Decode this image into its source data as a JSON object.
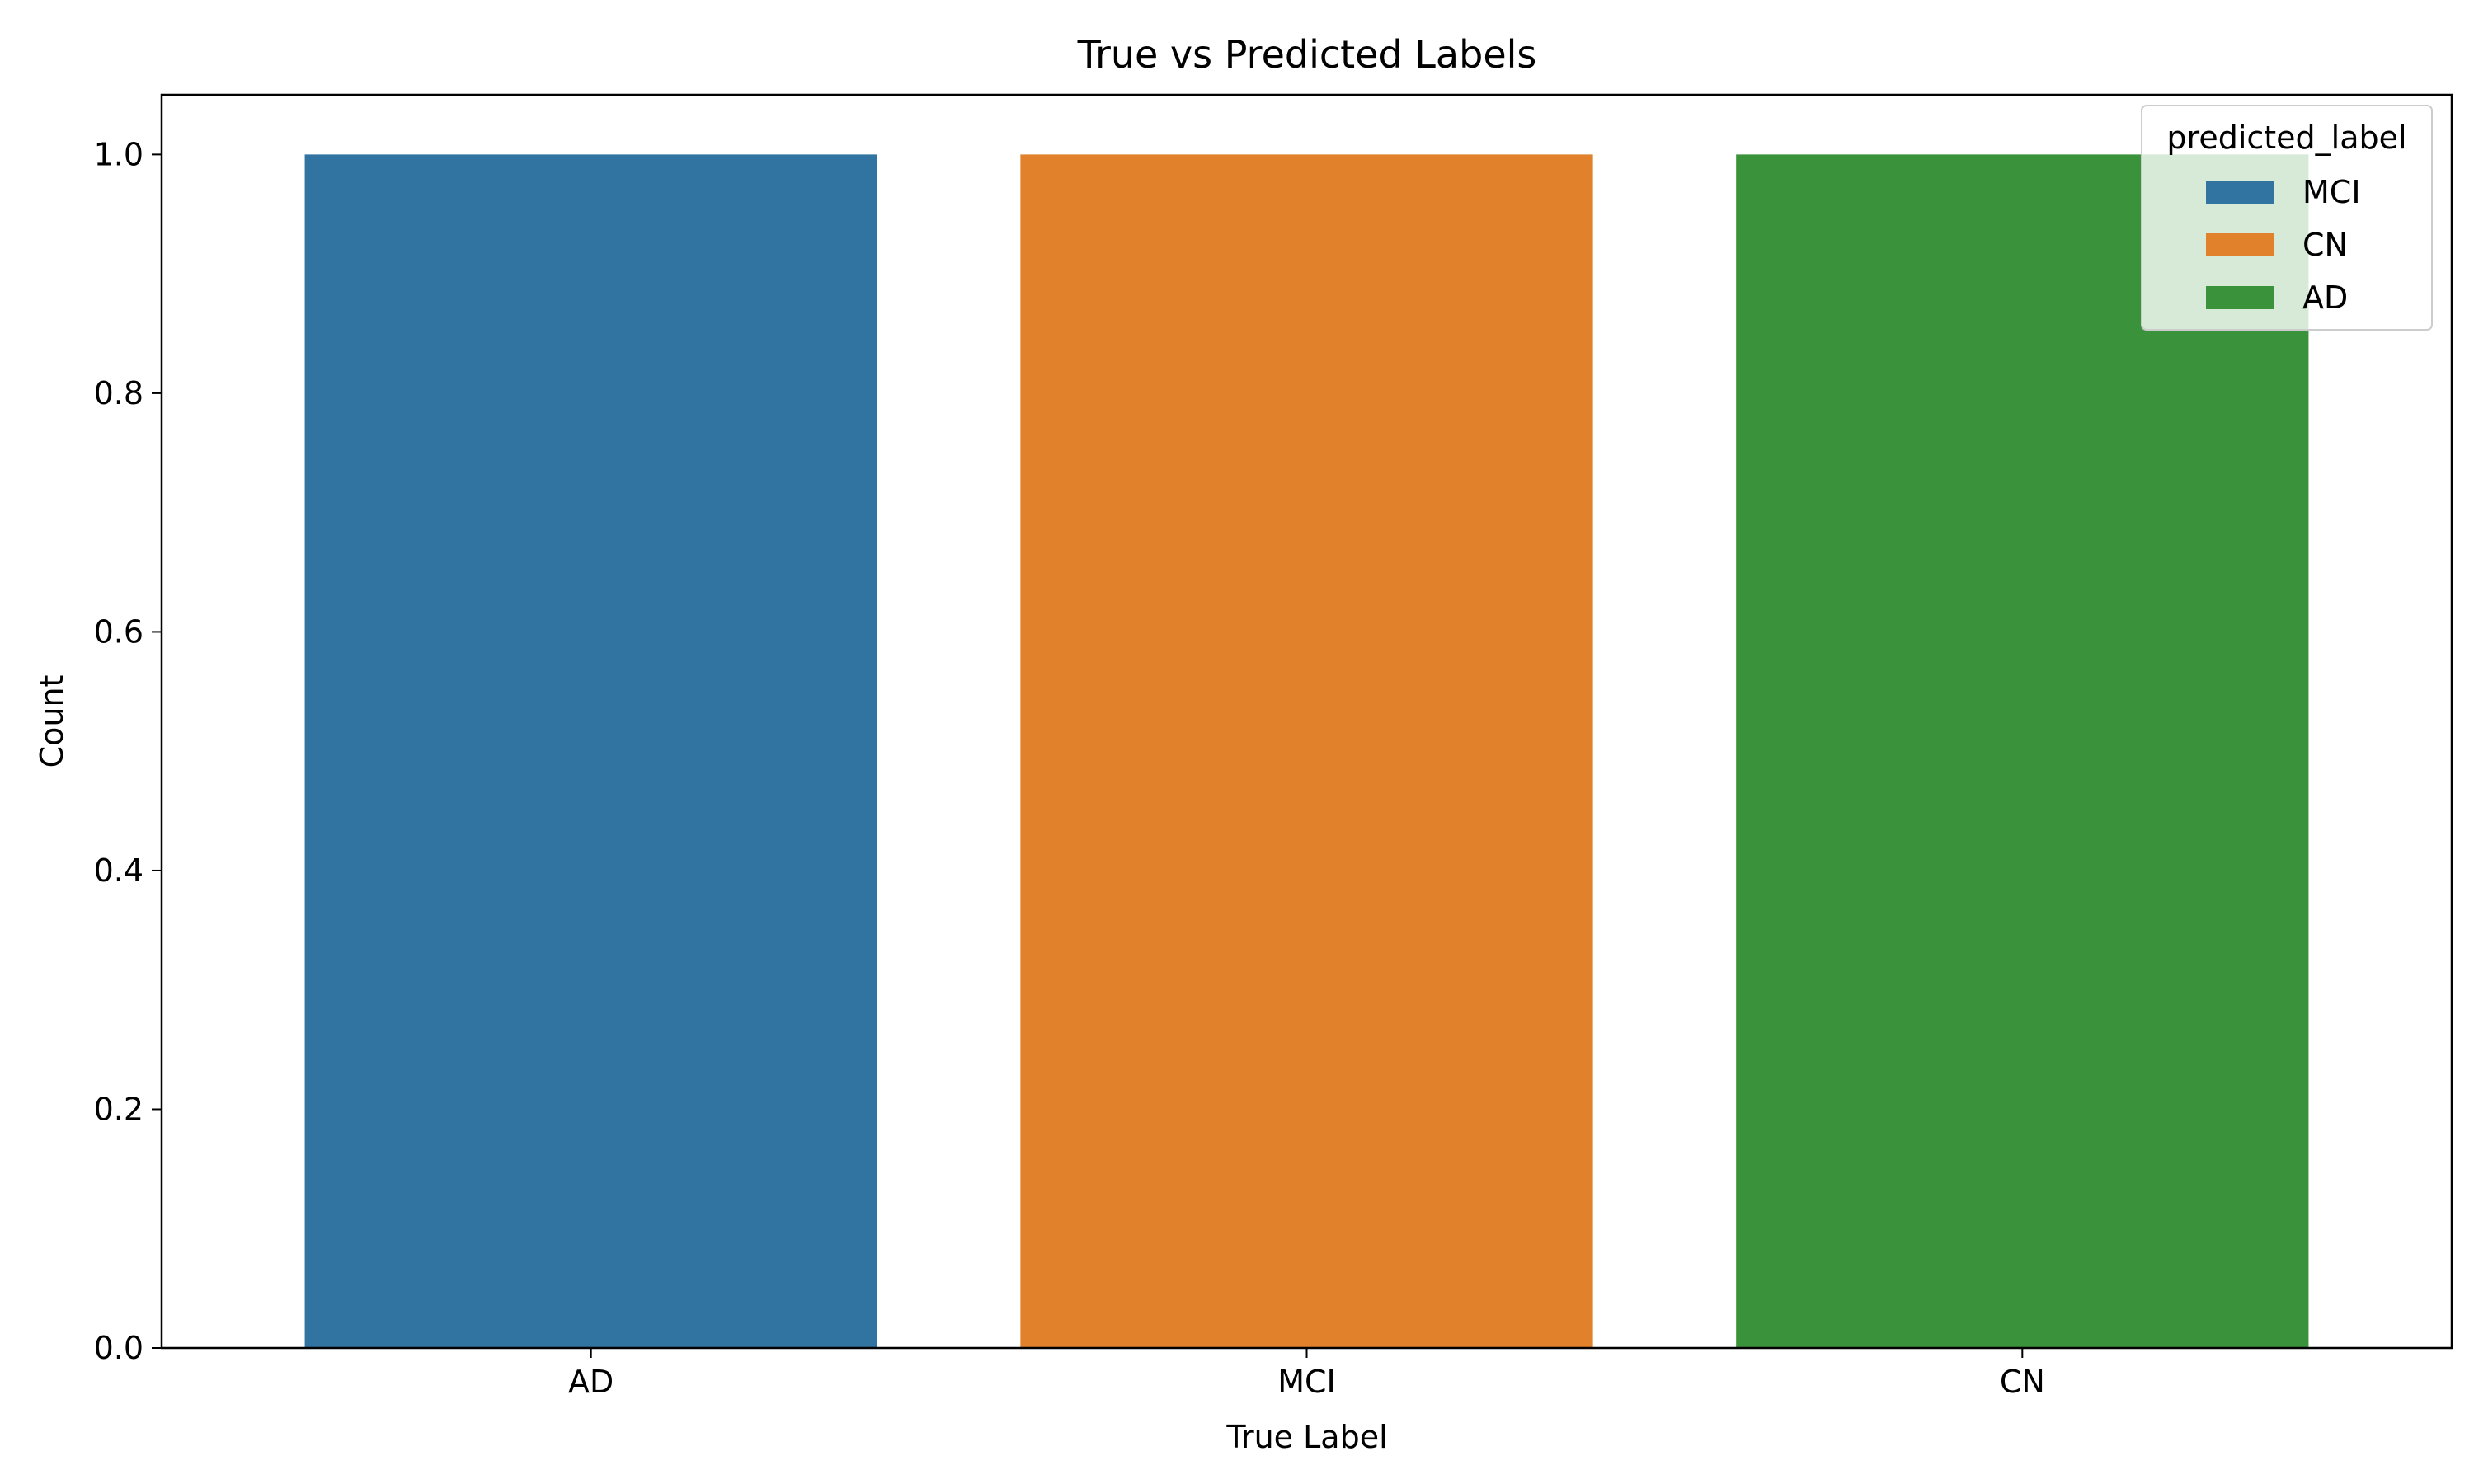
{
  "chart_data": {
    "type": "bar",
    "title": "True vs Predicted Labels",
    "xlabel": "True Label",
    "ylabel": "Count",
    "categories": [
      "AD",
      "MCI",
      "CN"
    ],
    "values": [
      1.0,
      1.0,
      1.0
    ],
    "bar_colors": [
      "#3274a1",
      "#e1812c",
      "#3a923a"
    ],
    "ylim": [
      0,
      1.05
    ],
    "yticks": [
      "0.0",
      "0.2",
      "0.4",
      "0.6",
      "0.8",
      "1.0"
    ],
    "ytick_values": [
      0.0,
      0.2,
      0.4,
      0.6,
      0.8,
      1.0
    ],
    "grid": false,
    "legend": {
      "title": "predicted_label",
      "placement": "top-right",
      "entries": [
        {
          "label": "MCI",
          "color": "#3274a1"
        },
        {
          "label": "CN",
          "color": "#e1812c"
        },
        {
          "label": "AD",
          "color": "#3a923a"
        }
      ]
    }
  }
}
